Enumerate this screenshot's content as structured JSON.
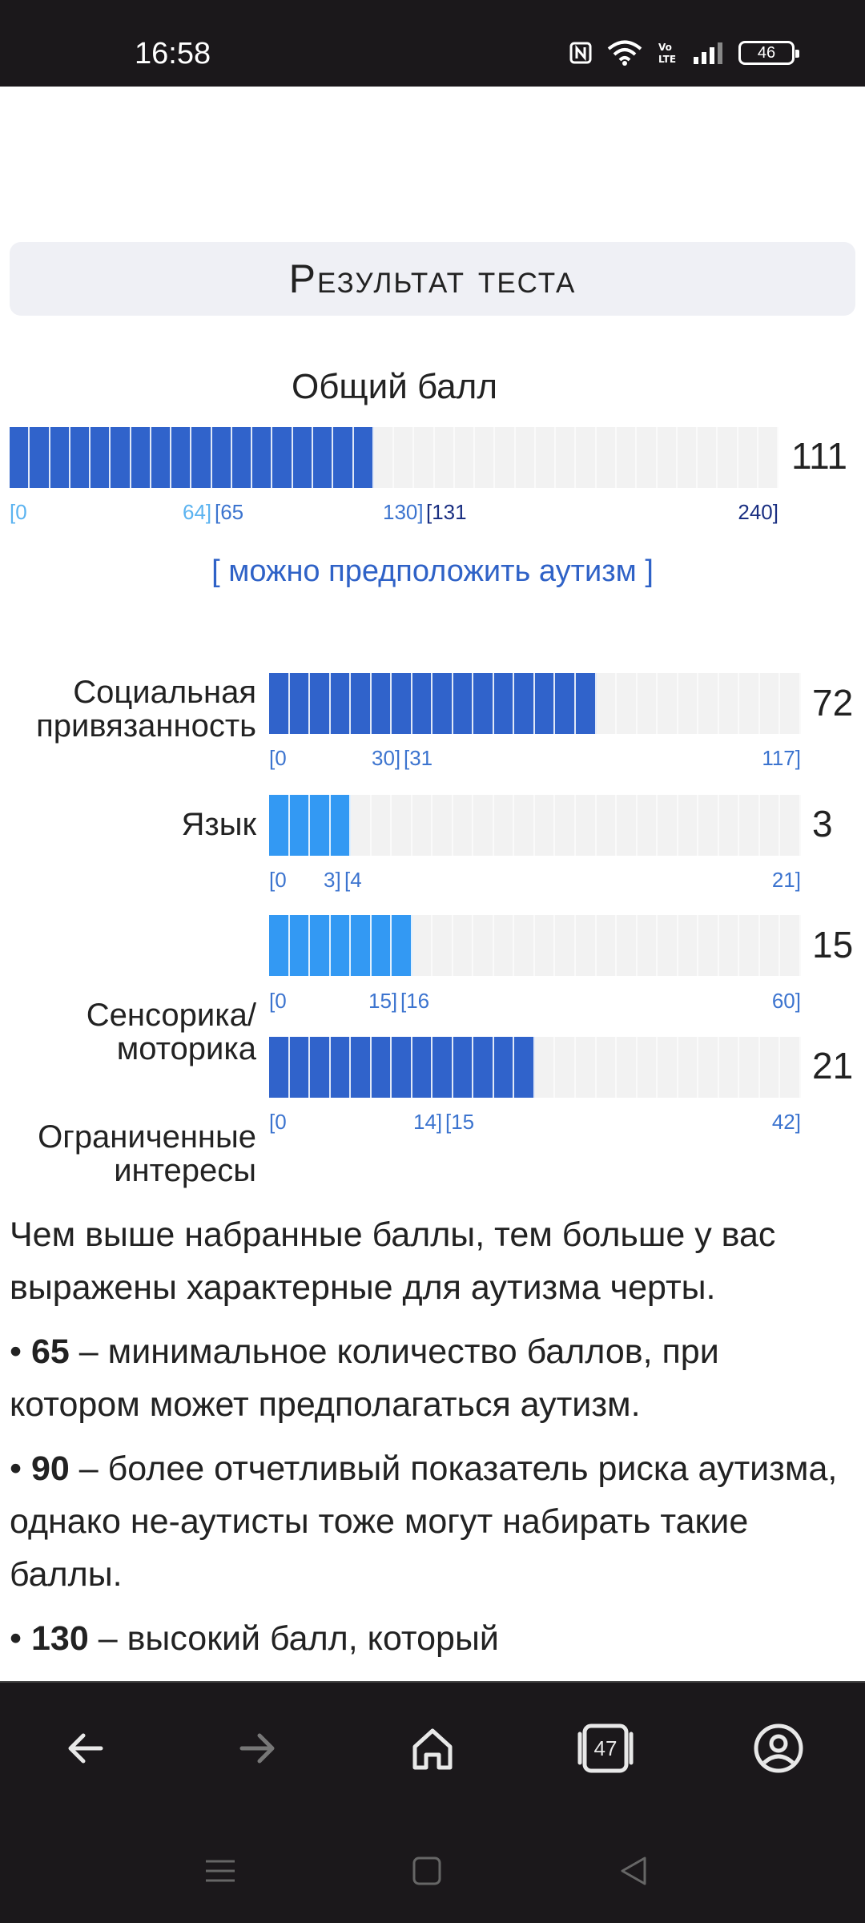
{
  "status_bar": {
    "time": "16:58",
    "battery": "46"
  },
  "page": {
    "header": "Результат теста",
    "total": {
      "label": "Общий балл",
      "score": "111",
      "fraction": 0.4625,
      "scale": [
        "[0",
        "64]",
        "[65",
        "130]",
        "[131",
        "240]"
      ],
      "conclusion": "[ можно предположить аутизм ]"
    },
    "subscales": [
      {
        "label_line1": "Социальная",
        "label_line2": "привязанность",
        "score": "72",
        "fraction": 0.615,
        "scale": [
          "[0",
          "30]",
          "[31",
          "117]"
        ]
      },
      {
        "label_line1": "Язык",
        "label_line2": "",
        "score": "3",
        "fraction": 0.143,
        "scale": [
          "[0",
          "3]",
          "[4",
          "21]"
        ]
      },
      {
        "label_line1": "Сенсорика/",
        "label_line2": "моторика",
        "score": "15",
        "fraction": 0.25,
        "scale": [
          "[0",
          "15]",
          "[16",
          "60]"
        ]
      },
      {
        "label_line1": "Ограниченные",
        "label_line2": "интересы",
        "score": "21",
        "fraction": 0.5,
        "scale": [
          "[0",
          "14]",
          "[15",
          "42]"
        ]
      }
    ],
    "text": {
      "intro": "Чем выше набранные баллы, тем больше у вас выражены характерные для аутизма черты.",
      "p1_num": "65",
      "p1_text": " – минимальное количество баллов, при котором может предполагаться аутизм.",
      "p2_num": "90",
      "p2_text": " – более отчетливый показатель риска аутизма, однако не-аутисты тоже могут набирать такие баллы.",
      "p3_num": "130",
      "p3_text": " – высокий балл, который"
    }
  },
  "nav": {
    "tabs_count": "47"
  },
  "colors": {
    "bar_dark": "#3063cb",
    "bar_light": "#3399f3",
    "scale_light": "#5bb3f0",
    "scale_mid": "#3c74cf",
    "scale_dark": "#1a2f82"
  }
}
